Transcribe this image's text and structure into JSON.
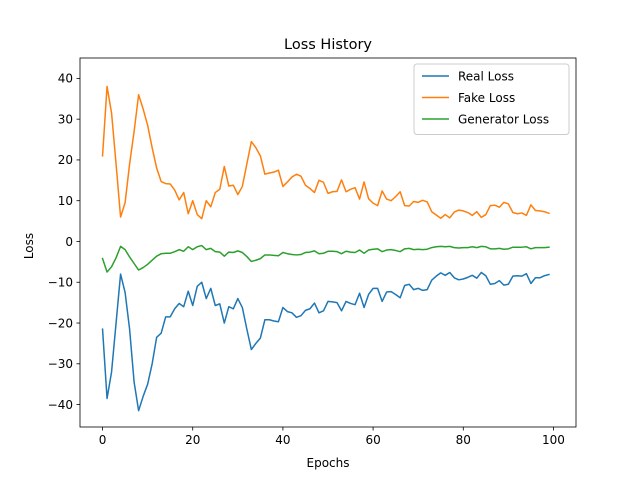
{
  "chart_data": {
    "type": "line",
    "title": "Loss History",
    "xlabel": "Epochs",
    "ylabel": "Loss",
    "xlim": [
      -5,
      105
    ],
    "ylim": [
      -45.5,
      45
    ],
    "xticks": [
      0,
      20,
      40,
      60,
      80,
      100
    ],
    "yticks": [
      -40,
      -30,
      -20,
      -10,
      0,
      10,
      20,
      30,
      40
    ],
    "grid": false,
    "legend_position": "top-right",
    "series": [
      {
        "name": "Real Loss",
        "color": "#1f77b4",
        "values": [
          -21.5,
          -38.5,
          -32,
          -20,
          -8,
          -12.5,
          -21.5,
          -34.5,
          -41.5,
          -38,
          -35,
          -30,
          -23.5,
          -22.5,
          -18.5,
          -18.5,
          -16.5,
          -15.2,
          -16,
          -12.2,
          -15.7,
          -11,
          -10,
          -14,
          -11.5,
          -15.7,
          -15.3,
          -20,
          -16,
          -16.5,
          -14,
          -16.2,
          -21.5,
          -26.5,
          -25,
          -23.7,
          -19.2,
          -19.2,
          -19.5,
          -19.7,
          -16.2,
          -17.2,
          -17.5,
          -18.6,
          -18.2,
          -16.9,
          -16.5,
          -15.1,
          -17.5,
          -17,
          -14.7,
          -14.8,
          -15,
          -17,
          -14.7,
          -15.2,
          -15.5,
          -12.7,
          -16.2,
          -13,
          -11.5,
          -11.5,
          -14.7,
          -12.4,
          -12.3,
          -13,
          -13.8,
          -10.8,
          -10.5,
          -11.8,
          -11.5,
          -12,
          -11.8,
          -9.5,
          -8.5,
          -7.7,
          -8.3,
          -7.6,
          -8.9,
          -9.4,
          -9.2,
          -8.8,
          -8.3,
          -9,
          -7.6,
          -8.4,
          -10.5,
          -10.3,
          -9.6,
          -10.7,
          -10.5,
          -8.5,
          -8.4,
          -8.5,
          -7.9,
          -10.3,
          -8.9,
          -8.9,
          -8.4,
          -8.1
        ]
      },
      {
        "name": "Fake Loss",
        "color": "#ff7f0e",
        "values": [
          21,
          38,
          31.5,
          19,
          6,
          9.5,
          19,
          27,
          36,
          32.5,
          28.5,
          23,
          18,
          14.7,
          14.2,
          14.1,
          12.6,
          10.2,
          12,
          6.8,
          10,
          6.6,
          5.6,
          10,
          8.5,
          12,
          12.8,
          18.4,
          13.6,
          13.8,
          11.5,
          13.5,
          19,
          24.5,
          23,
          21,
          16.5,
          16.8,
          17,
          17.5,
          13.5,
          14.6,
          15.8,
          16.5,
          16,
          13.8,
          13,
          12,
          15,
          14.5,
          11.8,
          12.2,
          12.3,
          15.1,
          12.2,
          12.8,
          13.2,
          10.4,
          14.6,
          10.5,
          9.4,
          8.8,
          12.4,
          10.4,
          10,
          11,
          12.2,
          8.8,
          8.7,
          9.8,
          9.6,
          10.1,
          9.7,
          7.3,
          6.5,
          5.7,
          6.6,
          5.8,
          7.2,
          7.7,
          7.5,
          7.1,
          6.4,
          7.3,
          5.9,
          6.6,
          8.8,
          8.9,
          8.4,
          9.6,
          9.2,
          7.1,
          6.8,
          7,
          6.4,
          9,
          7.6,
          7.5,
          7.3,
          6.9
        ]
      },
      {
        "name": "Generator Loss",
        "color": "#2ca02c",
        "values": [
          -4.2,
          -7.5,
          -6.2,
          -4,
          -1.2,
          -2,
          -3.8,
          -5.4,
          -7,
          -6.4,
          -5.6,
          -4.6,
          -3.6,
          -3,
          -2.9,
          -2.9,
          -2.5,
          -2,
          -2.4,
          -1.3,
          -2,
          -1.3,
          -1,
          -2,
          -1.7,
          -2.5,
          -2.6,
          -3.6,
          -2.6,
          -2.7,
          -2.3,
          -2.7,
          -3.7,
          -4.9,
          -4.6,
          -4.2,
          -3.3,
          -3.3,
          -3.4,
          -3.5,
          -2.7,
          -3,
          -3.2,
          -3.3,
          -3.2,
          -2.7,
          -2.6,
          -2.3,
          -3,
          -2.9,
          -2.4,
          -2.4,
          -2.5,
          -3,
          -2.4,
          -2.6,
          -2.7,
          -2.1,
          -2.9,
          -2.1,
          -1.9,
          -1.8,
          -2.5,
          -2.1,
          -2,
          -2.2,
          -2.5,
          -1.8,
          -1.7,
          -2,
          -1.9,
          -2,
          -1.9,
          -1.5,
          -1.3,
          -1.2,
          -1.3,
          -1.2,
          -1.5,
          -1.6,
          -1.5,
          -1.5,
          -1.3,
          -1.5,
          -1.2,
          -1.3,
          -1.8,
          -1.8,
          -1.7,
          -1.9,
          -1.8,
          -1.4,
          -1.4,
          -1.4,
          -1.3,
          -1.8,
          -1.5,
          -1.5,
          -1.5,
          -1.4
        ]
      }
    ]
  }
}
